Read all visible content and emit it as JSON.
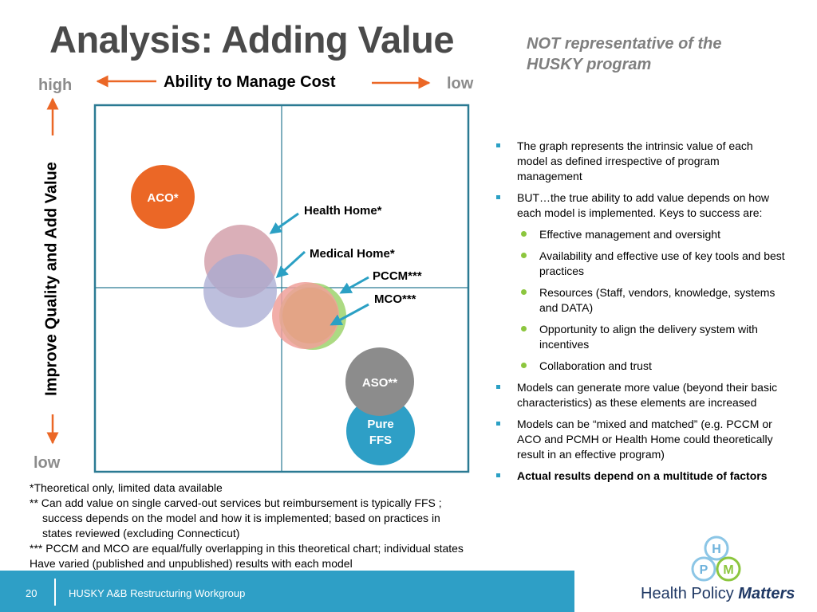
{
  "slide": {
    "title": "Analysis: Adding Value",
    "disclaimer": "NOT representative of the HUSKY program"
  },
  "axes": {
    "x_title": "Ability to Manage Cost",
    "x_left": "high",
    "x_right": "low",
    "y_title": "Improve Quality and Add Value",
    "y_bottom": "low"
  },
  "bubbles": {
    "aco": "ACO*",
    "aso": "ASO**",
    "pure_ffs_line1": "Pure",
    "pure_ffs_line2": "FFS"
  },
  "pointer_labels": {
    "health_home": "Health Home*",
    "medical_home": "Medical Home*",
    "pccm": "PCCM***",
    "mco": "MCO***"
  },
  "colors": {
    "aco": "#eb6726",
    "aso": "#8c8c8c",
    "pure_ffs": "#2e9fc6",
    "health_home": "#d4a1ac",
    "medical_home": "#a7a9d1",
    "pccm": "#9ed46d",
    "mco": "#f0a09a",
    "frame": "#2b7a93",
    "arrow": "#eb6726",
    "pointer": "#2ba0c4"
  },
  "bullets": [
    {
      "level": 1,
      "text": "The graph represents the intrinsic value of each model as defined irrespective of program management"
    },
    {
      "level": 1,
      "text": "BUT…the true ability to add value depends on how each model is implemented.  Keys to success are:"
    },
    {
      "level": 2,
      "text": "Effective management and oversight"
    },
    {
      "level": 2,
      "text": "Availability and effective use of key tools and best practices"
    },
    {
      "level": 2,
      "text": "Resources (Staff, vendors, knowledge, systems and DATA)"
    },
    {
      "level": 2,
      "text": "Opportunity to align the delivery system with incentives"
    },
    {
      "level": 2,
      "text": "Collaboration and trust"
    },
    {
      "level": 1,
      "text": "Models can generate more value (beyond their basic characteristics) as these elements are increased"
    },
    {
      "level": 1,
      "text": "Models can be “mixed and matched” (e.g. PCCM or ACO and PCMH or Health Home could theoretically result in an effective program)"
    },
    {
      "level": 1,
      "bold": true,
      "text": "Actual results depend on a multitude of factors"
    }
  ],
  "footnotes": {
    "line1": "*Theoretical only, limited data available",
    "line2": "** Can add value on single carved-out services but reimbursement is typically FFS ;",
    "line3": "success depends on the model and how it is implemented; based on practices in",
    "line4": "states reviewed  (excluding Connecticut)",
    "line5": "*** PCCM and MCO are equal/fully overlapping in this theoretical chart; individual states",
    "line6": "Have varied (published and unpublished) results with each model"
  },
  "footer": {
    "page_number": "20",
    "workgroup": "HUSKY A&B Restructuring Workgroup",
    "logo_text_1": "Health Policy",
    "logo_text_2": "Matters",
    "logo_letters": [
      "H",
      "P",
      "M"
    ]
  }
}
